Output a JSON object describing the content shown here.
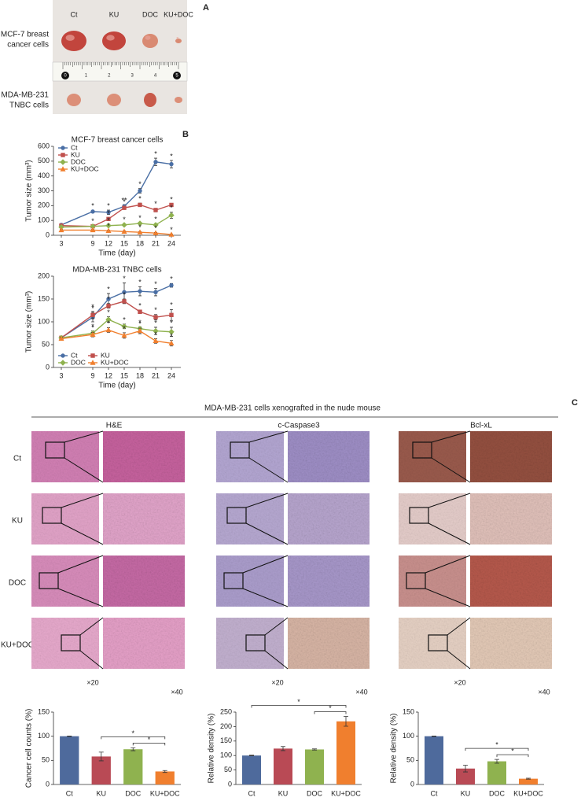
{
  "figure": {
    "a": {
      "label": "A",
      "columns": [
        "Ct",
        "KU",
        "DOC",
        "KU+DOC"
      ],
      "rows": [
        [
          "MCF-7 breast",
          "cancer cells"
        ],
        [
          "MDA-MB-231",
          "TNBC cells"
        ]
      ],
      "ruler": [
        0,
        1,
        2,
        3,
        4,
        5
      ]
    },
    "b": {
      "label": "B"
    },
    "c": {
      "label": "C",
      "title": "MDA-MB-231 cells xenografted in the nude mouse",
      "stains": [
        "H&E",
        "c-Caspase3",
        "Bcl-xL"
      ],
      "groups": [
        "Ct",
        "KU",
        "DOC",
        "KU+DOC"
      ],
      "magnifications": [
        "×20",
        "×40"
      ]
    }
  },
  "chart_data": [
    {
      "type": "line",
      "title": "MCF-7 breast cancer cells",
      "xlabel": "Time (day)",
      "ylabel": "Tumor size (mm³)",
      "x": [
        3,
        9,
        12,
        15,
        18,
        21,
        24
      ],
      "xlim": [
        1.5,
        25.8
      ],
      "xticks": [
        3,
        9,
        12,
        15,
        18,
        21,
        24
      ],
      "ylim": [
        0,
        600
      ],
      "yticks": [
        0,
        100,
        200,
        300,
        400,
        500,
        600
      ],
      "legend": "upper left",
      "legend_columns": 1,
      "series": [
        {
          "name": "Ct",
          "color": "#4a6fa5",
          "marker": "circle",
          "values": [
            70,
            160,
            155,
            195,
            300,
            495,
            480
          ],
          "errors": [
            8,
            8,
            15,
            12,
            15,
            25,
            25
          ],
          "significance": [
            null,
            "*",
            "*",
            "**",
            "*",
            "*",
            "*"
          ]
        },
        {
          "name": "KU",
          "color": "#c0504d",
          "marker": "square",
          "values": [
            65,
            60,
            110,
            185,
            205,
            170,
            205
          ],
          "errors": [
            6,
            6,
            10,
            10,
            12,
            12,
            8
          ],
          "significance": [
            null,
            null,
            "*",
            "*",
            "*",
            "*",
            "*"
          ]
        },
        {
          "name": "DOC",
          "color": "#8fb24f",
          "marker": "diamond",
          "values": [
            55,
            60,
            65,
            70,
            80,
            70,
            135
          ],
          "errors": [
            5,
            5,
            6,
            6,
            8,
            8,
            20
          ],
          "significance": [
            null,
            "*",
            "*",
            "*",
            "*",
            "*",
            "*"
          ]
        },
        {
          "name": "KU+DOC",
          "color": "#f07f2e",
          "marker": "triangle",
          "values": [
            35,
            35,
            30,
            25,
            20,
            15,
            5
          ],
          "errors": [
            4,
            4,
            4,
            4,
            4,
            4,
            3
          ],
          "significance": [
            null,
            null,
            "*",
            null,
            "*",
            "*",
            "*"
          ]
        }
      ]
    },
    {
      "type": "line",
      "title": "MDA-MB-231 TNBC cells",
      "xlabel": "Time (day)",
      "ylabel": "Tumor size (mm³)",
      "x": [
        3,
        9,
        12,
        15,
        18,
        21,
        24
      ],
      "xlim": [
        1.5,
        25.8
      ],
      "xticks": [
        3,
        9,
        12,
        15,
        18,
        21,
        24
      ],
      "ylim": [
        0,
        200
      ],
      "yticks": [
        0,
        50,
        100,
        150,
        200
      ],
      "legend": "lower left",
      "legend_columns": 2,
      "series": [
        {
          "name": "Ct",
          "color": "#4a6fa5",
          "marker": "circle",
          "values": [
            65,
            110,
            150,
            165,
            167,
            165,
            180
          ],
          "errors": [
            3,
            10,
            12,
            20,
            10,
            8,
            4
          ],
          "significance": [
            null,
            "*",
            "*",
            "*",
            "*",
            "*",
            "*"
          ]
        },
        {
          "name": "KU",
          "color": "#c0504d",
          "marker": "square",
          "values": [
            65,
            115,
            135,
            145,
            122,
            110,
            115
          ],
          "errors": [
            3,
            8,
            5,
            5,
            4,
            6,
            12
          ],
          "significance": [
            null,
            "*",
            "*",
            "*",
            "*",
            "*",
            "*"
          ]
        },
        {
          "name": "DOC",
          "color": "#8fb24f",
          "marker": "diamond",
          "values": [
            65,
            75,
            105,
            90,
            85,
            80,
            78
          ],
          "errors": [
            3,
            5,
            6,
            5,
            4,
            8,
            10
          ],
          "significance": [
            null,
            "*",
            "*",
            "*",
            "*",
            "*",
            "*"
          ]
        },
        {
          "name": "KU+DOC",
          "color": "#f07f2e",
          "marker": "triangle",
          "values": [
            63,
            72,
            82,
            70,
            80,
            58,
            53
          ],
          "errors": [
            3,
            5,
            5,
            6,
            6,
            5,
            6
          ],
          "significance": [
            null,
            "*",
            "*",
            "*",
            "*",
            "*",
            "*"
          ]
        }
      ]
    },
    {
      "type": "bar",
      "ylabel": "Cancer cell counts (%)",
      "categories": [
        "Ct",
        "KU",
        "DOC",
        "KU+DOC"
      ],
      "values": [
        100,
        58,
        73,
        27
      ],
      "errors": [
        0.5,
        9,
        3,
        2
      ],
      "colors": [
        "#4e6a9c",
        "#b94a55",
        "#8fb24f",
        "#f07f2e"
      ],
      "ylim": [
        0,
        150
      ],
      "yticks": [
        0,
        50,
        100,
        150
      ],
      "comparisons": [
        {
          "groups": [
            "KU",
            "KU+DOC"
          ],
          "label": "*"
        },
        {
          "groups": [
            "DOC",
            "KU+DOC"
          ],
          "label": "*"
        }
      ]
    },
    {
      "type": "bar",
      "ylabel": "Relative density (%)",
      "categories": [
        "Ct",
        "KU",
        "DOC",
        "KU+DOC"
      ],
      "values": [
        100,
        124,
        121,
        218
      ],
      "errors": [
        1,
        7,
        2,
        17
      ],
      "colors": [
        "#4e6a9c",
        "#b94a55",
        "#8fb24f",
        "#f07f2e"
      ],
      "ylim": [
        0,
        250
      ],
      "yticks": [
        0,
        50,
        100,
        150,
        200,
        250
      ],
      "comparisons": [
        {
          "groups": [
            "Ct",
            "KU+DOC"
          ],
          "label": "*"
        },
        {
          "groups": [
            "DOC",
            "KU+DOC"
          ],
          "label": "*"
        }
      ]
    },
    {
      "type": "bar",
      "ylabel": "Relative density (%)",
      "categories": [
        "Ct",
        "KU",
        "DOC",
        "KU+DOC"
      ],
      "values": [
        100,
        33,
        48,
        12
      ],
      "errors": [
        0.5,
        7,
        4,
        1
      ],
      "colors": [
        "#4e6a9c",
        "#b94a55",
        "#8fb24f",
        "#f07f2e"
      ],
      "ylim": [
        0,
        150
      ],
      "yticks": [
        0,
        50,
        100,
        150
      ],
      "comparisons": [
        {
          "groups": [
            "KU",
            "KU+DOC"
          ],
          "label": "*"
        },
        {
          "groups": [
            "DOC",
            "KU+DOC"
          ],
          "label": "*"
        }
      ]
    }
  ]
}
